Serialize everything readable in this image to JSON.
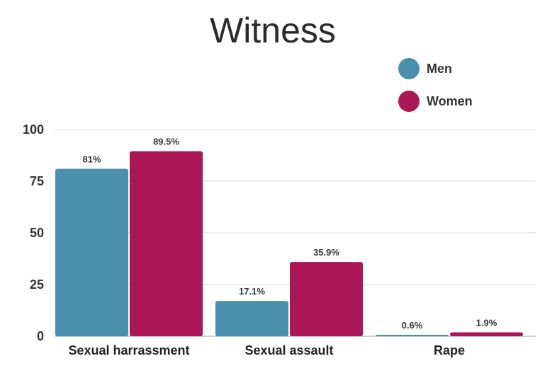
{
  "chart_data": {
    "type": "bar",
    "title": "Witness",
    "categories": [
      "Sexual harrassment",
      "Sexual assault",
      "Rape"
    ],
    "series": [
      {
        "name": "Men",
        "values": [
          81,
          17.1,
          0.6
        ],
        "labels": [
          "81%",
          "17.1%",
          "0.6%"
        ],
        "color": "#4a8fab"
      },
      {
        "name": "Women",
        "values": [
          89.5,
          35.9,
          1.9
        ],
        "labels": [
          "89.5%",
          "35.9%",
          "1.9%"
        ],
        "color": "#ab1656"
      }
    ],
    "ylim": [
      0,
      100
    ],
    "yticks": [
      "0",
      "25",
      "50",
      "75",
      "100"
    ],
    "xlabel": "",
    "ylabel": "",
    "grid": true,
    "legend_position": "top-right"
  }
}
